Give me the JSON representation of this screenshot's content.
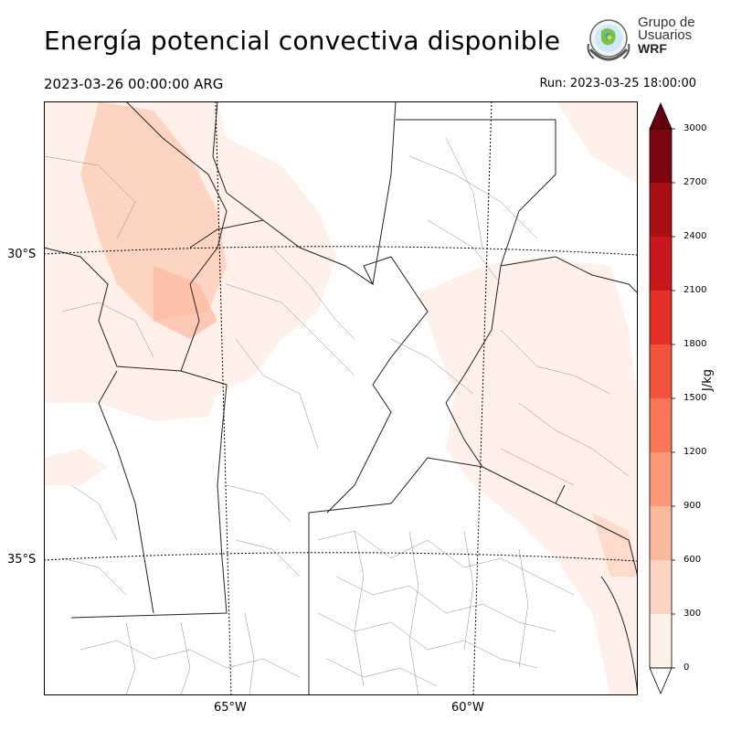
{
  "header": {
    "title": "Energía potencial convectiva disponible",
    "valid_time": "2023-03-26 00:00:00 ARG",
    "run_time": "Run: 2023-03-25 18:00:00"
  },
  "logo": {
    "line1": "Grupo de",
    "line2": "Usuarios",
    "line3": "WRF"
  },
  "map": {
    "lat_labels": [
      "30°S",
      "35°S"
    ],
    "lon_labels": [
      "65°W",
      "60°W"
    ]
  },
  "colorbar": {
    "label": "J/kg",
    "ticks": [
      "3000",
      "2700",
      "2400",
      "2100",
      "1800",
      "1500",
      "1200",
      "900",
      "600",
      "300",
      "0"
    ],
    "colors": [
      "#fff0ea",
      "#fdd4c2",
      "#fcb89c",
      "#fc9777",
      "#fb7656",
      "#f4533b",
      "#e32f27",
      "#c9181d",
      "#a91016",
      "#7b0610"
    ],
    "over_color": "#67000d",
    "under_color": "#ffffff"
  }
}
